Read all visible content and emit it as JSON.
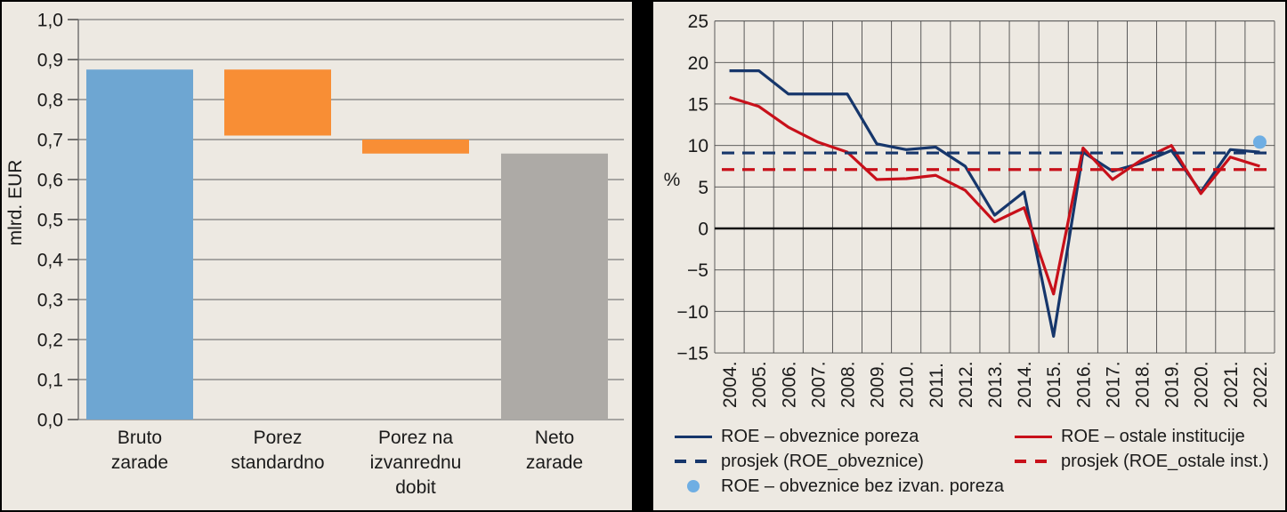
{
  "colors": {
    "bg": "#EDE9E2",
    "divider": "#000000",
    "text": "#1a1a1a",
    "grid_left": "#7d7d7d",
    "grid_right": "#4a4a4a",
    "blue": "#6EA6D2",
    "orange": "#F88E35",
    "gray": "#ADAAA6",
    "navy": "#16366B",
    "red": "#C8101A",
    "lightblue": "#6FAEE3"
  },
  "chart_data": [
    {
      "type": "bar",
      "subtype": "waterfall",
      "title": "",
      "ylabel": "mlrd. EUR",
      "xlabel": "",
      "ylim": [
        0.0,
        1.0
      ],
      "ytick_step": 0.1,
      "ytick_labels": [
        "0,0",
        "0,1",
        "0,2",
        "0,3",
        "0,4",
        "0,5",
        "0,6",
        "0,7",
        "0,8",
        "0,9",
        "1,0"
      ],
      "grid": "horizontal",
      "categories": [
        "Bruto zarade",
        "Porez standardno",
        "Porez na izvanrednu dobit",
        "Neto zarade"
      ],
      "category_lines": [
        [
          "Bruto",
          "zarade"
        ],
        [
          "Porez",
          "standardno"
        ],
        [
          "Porez na",
          "izvanrednu",
          "dobit"
        ],
        [
          "Neto",
          "zarade"
        ]
      ],
      "bars": [
        {
          "label": "Bruto zarade",
          "from": 0.0,
          "to": 0.875,
          "color_key": "blue"
        },
        {
          "label": "Porez standardno",
          "from": 0.71,
          "to": 0.875,
          "color_key": "orange"
        },
        {
          "label": "Porez na izvanrednu dobit",
          "from": 0.665,
          "to": 0.7,
          "color_key": "orange"
        },
        {
          "label": "Neto zarade",
          "from": 0.0,
          "to": 0.665,
          "color_key": "gray"
        }
      ]
    },
    {
      "type": "line",
      "title": "",
      "ylabel": "%",
      "xlabel": "",
      "ylim": [
        -15,
        25
      ],
      "ytick_step": 5,
      "ytick_labels": [
        "−15",
        "−10",
        "−5",
        "0",
        "5",
        "10",
        "15",
        "20",
        "25"
      ],
      "grid": "both",
      "legend_position": "bottom",
      "x_categories": [
        "2004.",
        "2005.",
        "2006.",
        "2007.",
        "2008.",
        "2009.",
        "2010.",
        "2011.",
        "2012.",
        "2013.",
        "2014.",
        "2015.",
        "2016.",
        "2017.",
        "2018.",
        "2019.",
        "2020.",
        "2021.",
        "2022."
      ],
      "series": [
        {
          "name": "ROE – obveznice poreza",
          "style": "solid",
          "color_key": "navy",
          "values": [
            19.0,
            19.0,
            16.2,
            16.2,
            16.2,
            10.2,
            9.5,
            9.8,
            7.5,
            1.6,
            4.4,
            -13.0,
            9.2,
            6.9,
            7.9,
            9.4,
            4.4,
            9.5,
            9.2
          ]
        },
        {
          "name": "ROE – ostale institucije",
          "style": "solid",
          "color_key": "red",
          "values": [
            15.8,
            14.7,
            12.2,
            10.4,
            9.2,
            5.9,
            6.0,
            6.4,
            4.6,
            0.8,
            2.5,
            -7.9,
            9.7,
            5.9,
            8.3,
            10.0,
            4.2,
            8.6,
            7.5
          ]
        },
        {
          "name": "prosjek (ROE_obveznice)",
          "style": "dashed",
          "color_key": "navy",
          "value": 9.1
        },
        {
          "name": "prosjek (ROE_ostale inst.)",
          "style": "dashed",
          "color_key": "red",
          "value": 7.1
        },
        {
          "name": "ROE – obveznice bez izvan. poreza",
          "style": "dot",
          "color_key": "lightblue",
          "points": [
            {
              "x": "2022.",
              "y": 10.4
            }
          ]
        }
      ]
    }
  ]
}
